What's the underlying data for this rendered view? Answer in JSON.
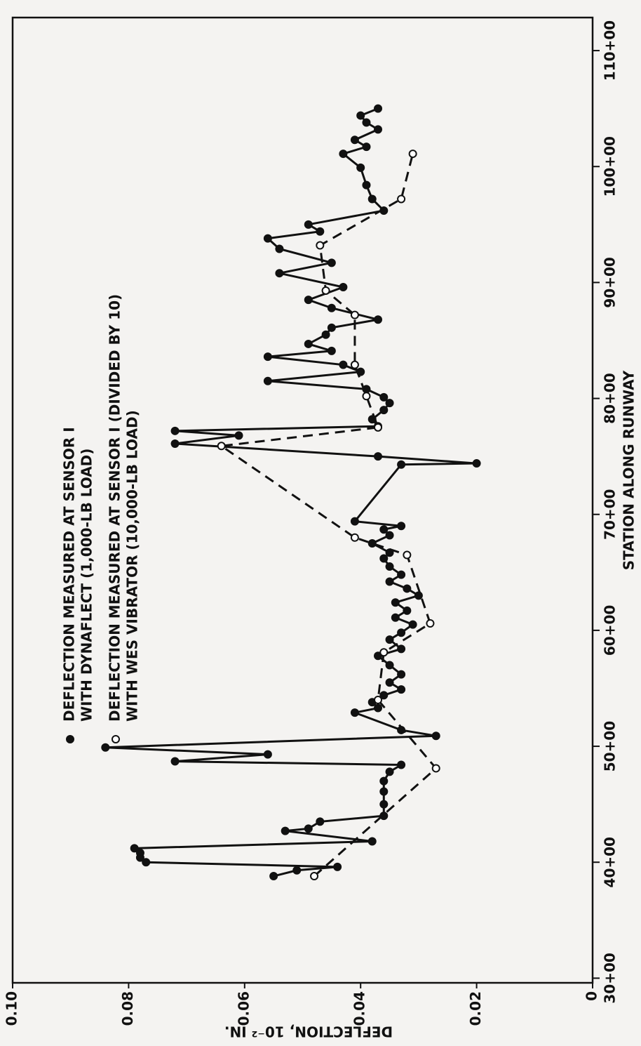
{
  "chart_data": {
    "type": "line",
    "xlabel": "STATION ALONG RUNWAY",
    "ylabel": "DEFLECTION, 10⁻² IN.",
    "xlim": [
      2960,
      11285
    ],
    "xticks": [
      {
        "value": 3000,
        "label": "30+00"
      },
      {
        "value": 4000,
        "label": "40+00"
      },
      {
        "value": 5000,
        "label": "50+00"
      },
      {
        "value": 6000,
        "label": "60+00"
      },
      {
        "value": 7000,
        "label": "70+00"
      },
      {
        "value": 8000,
        "label": "80+00"
      },
      {
        "value": 9000,
        "label": "90+00"
      },
      {
        "value": 10000,
        "label": "100+00"
      },
      {
        "value": 11000,
        "label": "110+00"
      }
    ],
    "ylim": [
      0,
      0.1
    ],
    "yticks": [
      0,
      0.02,
      0.04,
      0.06,
      0.08,
      {
        "value": 0.1,
        "label": "0.10"
      }
    ],
    "grid": false,
    "series": [
      {
        "name": [
          "DEFLECTION MEASURED AT SENSOR I",
          "WITH DYNAFLECT (1,000-LB LOAD)"
        ],
        "color": "#111111",
        "style": "solid",
        "marker": "filled",
        "x": [
          3880,
          3930,
          3960,
          4000,
          4040,
          4080,
          4120,
          4180,
          4270,
          4290,
          4350,
          4400,
          4500,
          4610,
          4700,
          4780,
          4840,
          4870,
          4930,
          4990,
          5090,
          5140,
          5290,
          5330,
          5380,
          5440,
          5490,
          5550,
          5620,
          5700,
          5780,
          5840,
          5920,
          5980,
          6050,
          6110,
          6170,
          6240,
          6300,
          6360,
          6420,
          6480,
          6550,
          6620,
          6670,
          6750,
          6820,
          6870,
          6900,
          6940,
          7430,
          7440,
          7500,
          7610,
          7680,
          7720,
          7760,
          7820,
          7900,
          7960,
          8010,
          8080,
          8150,
          8230,
          8290,
          8360,
          8410,
          8470,
          8550,
          8610,
          8680,
          8780,
          8850,
          8960,
          9080,
          9170,
          9290,
          9380,
          9440,
          9500,
          9620,
          9720,
          9840,
          9990,
          10110,
          10170,
          10230,
          10320,
          10380,
          10440,
          10500
        ],
        "values": [
          0.055,
          0.051,
          0.044,
          0.077,
          0.078,
          0.078,
          0.079,
          0.038,
          0.053,
          0.049,
          0.047,
          0.036,
          0.036,
          0.036,
          0.036,
          0.035,
          0.033,
          0.072,
          0.056,
          0.084,
          0.027,
          0.033,
          0.041,
          0.037,
          0.038,
          0.036,
          0.033,
          0.035,
          0.033,
          0.035,
          0.037,
          0.033,
          0.035,
          0.033,
          0.031,
          0.034,
          0.032,
          0.034,
          0.03,
          0.032,
          0.035,
          0.033,
          0.035,
          0.036,
          0.035,
          0.038,
          0.035,
          0.036,
          0.033,
          0.041,
          0.033,
          0.02,
          0.037,
          0.072,
          0.061,
          0.072,
          0.037,
          0.038,
          0.036,
          0.035,
          0.036,
          0.039,
          0.056,
          0.04,
          0.043,
          0.056,
          0.045,
          0.049,
          0.046,
          0.045,
          0.037,
          0.045,
          0.049,
          0.043,
          0.054,
          0.045,
          0.054,
          0.056,
          0.047,
          0.049,
          0.036,
          0.038,
          0.039,
          0.04,
          0.043,
          0.039,
          0.041,
          0.037,
          0.039,
          0.04,
          0.037
        ]
      },
      {
        "name": [
          "DEFLECTION MEASURED AT SENSOR I (DIVIDED BY 10)",
          "WITH WES VIBRATOR (10,000-LB LOAD)"
        ],
        "color": "#111111",
        "style": "dashed",
        "marker": "open",
        "x": [
          3880,
          4810,
          5400,
          5810,
          6060,
          6650,
          6800,
          7590,
          7750,
          8020,
          8290,
          8720,
          8930,
          9320,
          9720,
          10110
        ],
        "values": [
          0.048,
          0.027,
          0.037,
          0.036,
          0.028,
          0.032,
          0.041,
          0.064,
          0.037,
          0.039,
          0.041,
          0.041,
          0.046,
          0.047,
          0.033,
          0.031
        ]
      }
    ]
  }
}
